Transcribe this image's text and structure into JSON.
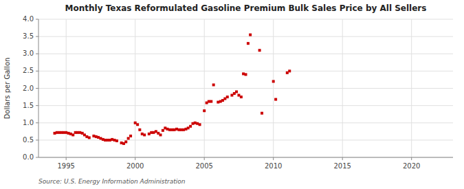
{
  "chart_data": {
    "type": "scatter",
    "title": "Monthly Texas Reformulated Gasoline Premium Bulk Sales Price by All Sellers",
    "ylabel": "Dollars per Gallon",
    "source": "Source: U.S. Energy Information Administration",
    "xlim": [
      1993.0,
      2023.0
    ],
    "ylim": [
      0.0,
      4.0
    ],
    "xticks": [
      1995,
      2000,
      2005,
      2010,
      2015,
      2020
    ],
    "yticks": [
      {
        "value": 0.0,
        "label": "0.0"
      },
      0.5,
      {
        "value": 1.0,
        "label": "1.0"
      },
      1.5,
      {
        "value": 2.0,
        "label": "2.0"
      },
      2.5,
      {
        "value": 3.0,
        "label": "3.0"
      },
      3.5,
      {
        "value": 4.0,
        "label": "4.0"
      }
    ],
    "grid": true,
    "color": "#cc0000",
    "marker": "square",
    "x": [
      1994.17,
      1994.33,
      1994.5,
      1994.67,
      1994.83,
      1995.0,
      1995.17,
      1995.33,
      1995.5,
      1995.67,
      1995.83,
      1996.0,
      1996.17,
      1996.33,
      1996.5,
      1996.67,
      1997.0,
      1997.17,
      1997.33,
      1997.5,
      1997.67,
      1997.83,
      1998.0,
      1998.17,
      1998.33,
      1998.5,
      1998.67,
      1999.0,
      1999.17,
      1999.33,
      1999.5,
      1999.67,
      2000.0,
      2000.17,
      2000.33,
      2000.5,
      2000.67,
      2001.0,
      2001.17,
      2001.33,
      2001.5,
      2001.67,
      2001.83,
      2002.0,
      2002.17,
      2002.33,
      2002.5,
      2002.67,
      2002.83,
      2003.0,
      2003.17,
      2003.33,
      2003.5,
      2003.67,
      2003.83,
      2004.0,
      2004.17,
      2004.33,
      2004.5,
      2004.67,
      2005.0,
      2005.17,
      2005.33,
      2005.5,
      2005.67,
      2006.0,
      2006.17,
      2006.33,
      2006.5,
      2006.67,
      2007.0,
      2007.17,
      2007.33,
      2007.5,
      2007.67,
      2007.83,
      2008.0,
      2008.17,
      2008.33,
      2009.0,
      2009.17,
      2010.0,
      2010.17,
      2011.0,
      2011.17
    ],
    "values": [
      0.7,
      0.72,
      0.72,
      0.72,
      0.72,
      0.72,
      0.7,
      0.68,
      0.65,
      0.72,
      0.72,
      0.72,
      0.7,
      0.65,
      0.6,
      0.57,
      0.62,
      0.6,
      0.58,
      0.55,
      0.52,
      0.5,
      0.5,
      0.5,
      0.52,
      0.5,
      0.48,
      0.42,
      0.4,
      0.45,
      0.55,
      0.62,
      1.0,
      0.95,
      0.8,
      0.68,
      0.65,
      0.68,
      0.72,
      0.72,
      0.75,
      0.7,
      0.65,
      0.78,
      0.85,
      0.82,
      0.8,
      0.8,
      0.8,
      0.82,
      0.8,
      0.8,
      0.8,
      0.82,
      0.85,
      0.9,
      0.98,
      1.0,
      0.98,
      0.95,
      1.35,
      1.58,
      1.62,
      1.62,
      2.1,
      1.6,
      1.62,
      1.65,
      1.7,
      1.75,
      1.8,
      1.85,
      1.9,
      1.8,
      1.75,
      2.42,
      2.4,
      3.3,
      3.55,
      3.1,
      1.28,
      2.2,
      1.68,
      2.45,
      2.5
    ]
  }
}
